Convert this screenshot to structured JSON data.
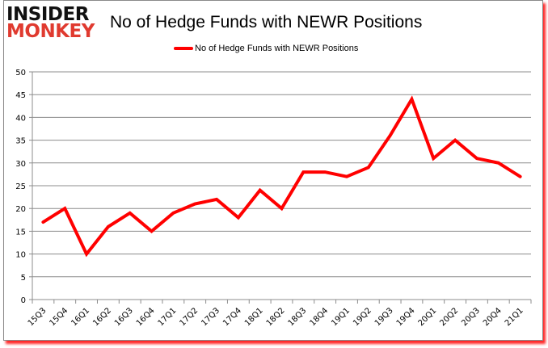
{
  "logo": {
    "line1": "INSIDER",
    "line2": "MONKEY"
  },
  "header": {
    "title": "No of Hedge Funds with NEWR Positions"
  },
  "legend": {
    "label": "No of Hedge Funds with NEWR Positions",
    "color": "#ff0000"
  },
  "chart_data": {
    "type": "line",
    "title": "No of Hedge Funds with NEWR Positions",
    "xlabel": "",
    "ylabel": "",
    "ylim": [
      0,
      50
    ],
    "yticks": [
      0,
      5,
      10,
      15,
      20,
      25,
      30,
      35,
      40,
      45,
      50
    ],
    "grid": true,
    "legend_position": "top",
    "categories": [
      "15Q3",
      "15Q4",
      "16Q1",
      "16Q2",
      "16Q3",
      "16Q4",
      "17Q1",
      "17Q2",
      "17Q3",
      "17Q4",
      "18Q1",
      "18Q2",
      "18Q3",
      "18Q4",
      "19Q1",
      "19Q2",
      "19Q3",
      "19Q4",
      "20Q1",
      "20Q2",
      "20Q3",
      "20Q4",
      "21Q1"
    ],
    "series": [
      {
        "name": "No of Hedge Funds with NEWR Positions",
        "color": "#ff0000",
        "values": [
          17,
          20,
          10,
          16,
          19,
          15,
          19,
          21,
          22,
          18,
          24,
          20,
          28,
          28,
          27,
          29,
          36,
          44,
          31,
          35,
          31,
          30,
          27
        ]
      }
    ]
  }
}
